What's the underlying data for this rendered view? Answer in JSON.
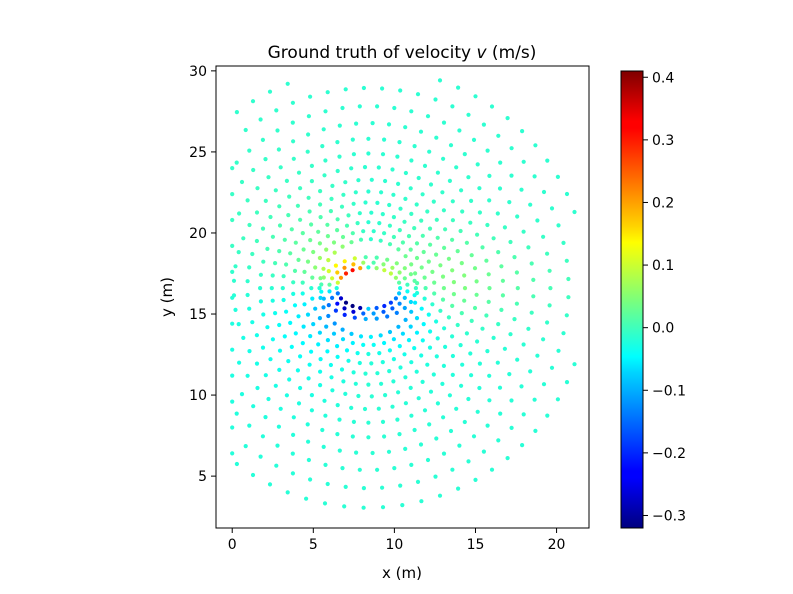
{
  "chart_data": {
    "type": "scatter",
    "title_prefix": "Ground truth of velocity ",
    "title_var": "v",
    "title_suffix": " (m/s)",
    "xlabel": "x (m)",
    "ylabel": "y (m)",
    "xlim": [
      -1.0,
      22.0
    ],
    "ylim": [
      1.8,
      30.3
    ],
    "xticks": [
      0,
      5,
      10,
      15,
      20
    ],
    "yticks": [
      5,
      10,
      15,
      20,
      25,
      30
    ],
    "obstacle": {
      "cx": 8.4,
      "cy": 16.6,
      "rx": 1.5,
      "ry": 0.5
    },
    "colorbar": {
      "colormap": "jet",
      "vmin": -0.32,
      "vmax": 0.41,
      "ticks": [
        -0.3,
        -0.2,
        -0.1,
        0.0,
        0.1,
        0.2,
        0.3,
        0.4
      ],
      "tick_labels": [
        "−0.3",
        "−0.2",
        "−0.1",
        "0.0",
        "0.1",
        "0.2",
        "0.3",
        "0.4"
      ]
    },
    "marker_size": 2.1
  }
}
